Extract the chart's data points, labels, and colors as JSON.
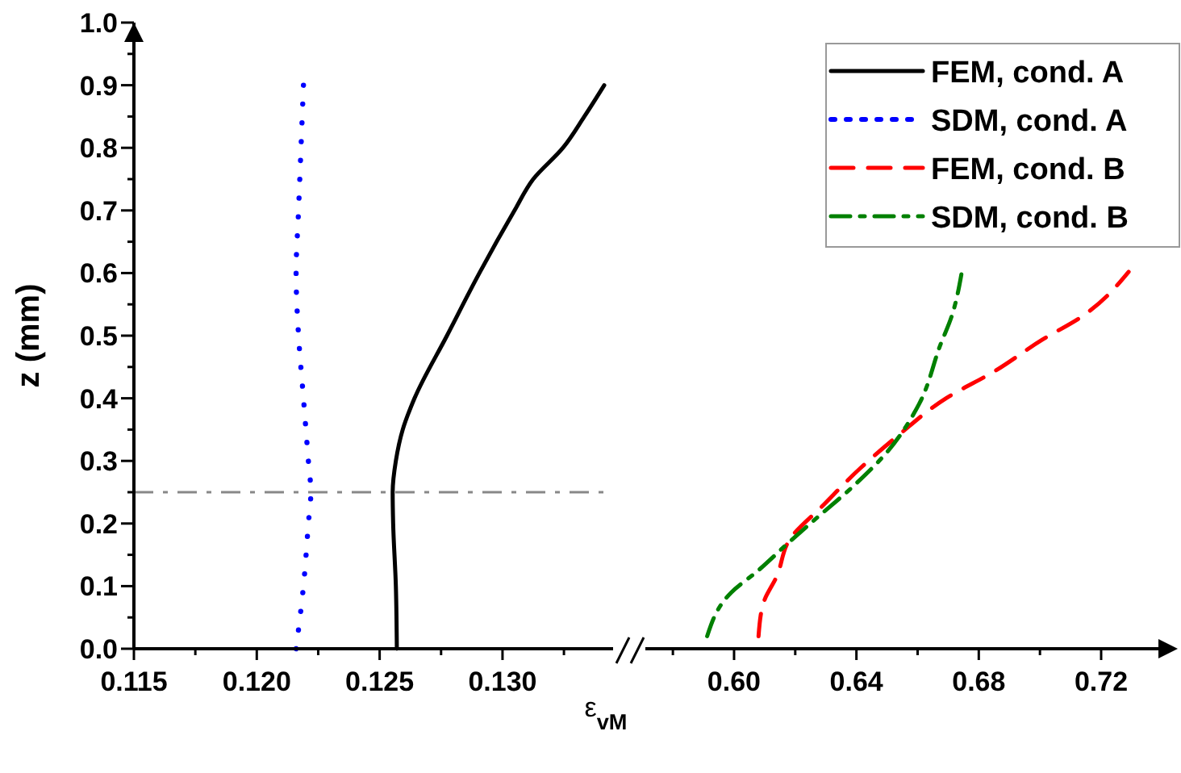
{
  "chart_data": [
    {
      "type": "line",
      "xlabel": "ε$_{vM}$",
      "ylabel": "z (mm)",
      "xlim": [
        0.115,
        0.1345
      ],
      "ylim": [
        0,
        1.0
      ],
      "xticks": [
        0.115,
        {
          "value": 0.12,
          "label": "0.120"
        },
        0.125,
        {
          "value": 0.13,
          "label": "0.130"
        },
        {
          "value": 0.1175,
          "label": null
        },
        {
          "value": 0.1225,
          "label": null
        },
        {
          "value": 0.1275,
          "label": null
        },
        {
          "value": 0.1325,
          "label": null
        }
      ],
      "yticks": [
        {
          "value": 0,
          "label": "0.0"
        },
        0.1,
        0.2,
        0.3,
        0.4,
        0.5,
        0.6,
        0.7,
        0.8,
        0.9,
        {
          "value": 1,
          "label": "1.0"
        },
        {
          "value": 0.05,
          "label": null
        },
        {
          "value": 0.15,
          "label": null
        },
        {
          "value": 0.25,
          "label": null
        },
        {
          "value": 0.35,
          "label": null
        },
        {
          "value": 0.45,
          "label": null
        },
        {
          "value": 0.55,
          "label": null
        },
        {
          "value": 0.65,
          "label": null
        },
        {
          "value": 0.75,
          "label": null
        },
        {
          "value": 0.85,
          "label": null
        },
        {
          "value": 0.95,
          "label": null
        }
      ],
      "tick_labels": "xy",
      "legend": "top right",
      "grid": false,
      "ref_lines": [
        {
          "axis": "y",
          "value": 0.25,
          "color": "#888888",
          "line_style": "dashdot"
        }
      ],
      "series": [
        {
          "name": "FEM, cond. A",
          "color": "#000000",
          "line_style": "solid",
          "x": [
            0.1257,
            0.12566,
            0.12555,
            0.12553,
            0.12566,
            0.12594,
            0.12642,
            0.12774,
            0.12906,
            0.13049,
            0.13125,
            0.13246,
            0.13333,
            0.13414
          ],
          "values": [
            0,
            0.1,
            0.2,
            0.25,
            0.3,
            0.35,
            0.4,
            0.5,
            0.6,
            0.7,
            0.75,
            0.8,
            0.85,
            0.9
          ]
        },
        {
          "name": "SDM, cond. A",
          "color": "#0000ff",
          "line_style": "dotted",
          "x": [
            0.1216,
            0.1219,
            0.1221,
            0.1222,
            0.1221,
            0.1219,
            0.1217,
            0.1216,
            0.1217,
            0.1218,
            0.1219
          ],
          "values": [
            0,
            0.1,
            0.2,
            0.25,
            0.3,
            0.4,
            0.5,
            0.6,
            0.7,
            0.8,
            0.9
          ]
        }
      ]
    },
    {
      "type": "line",
      "xlim": [
        0.571,
        0.744
      ],
      "ylim": [
        0,
        1.0
      ],
      "xticks": [
        {
          "value": 0.6,
          "label": "0.60"
        },
        0.64,
        0.68,
        0.72,
        {
          "value": 0.58,
          "label": null
        },
        {
          "value": 0.62,
          "label": null
        },
        {
          "value": 0.66,
          "label": null
        },
        {
          "value": 0.7,
          "label": null
        },
        {
          "value": 0.74,
          "label": null
        }
      ],
      "tick_labels": "x",
      "legend": "top right",
      "grid": false,
      "series": [
        {
          "name": "FEM, cond. B",
          "color": "#ff0000",
          "line_style": "dashed",
          "x": [
            0.608,
            0.6096,
            0.614,
            0.6184,
            0.6289,
            0.6412,
            0.6535,
            0.6693,
            0.6851,
            0.7009,
            0.7132,
            0.729
          ],
          "values": [
            0.02,
            0.073,
            0.116,
            0.176,
            0.228,
            0.288,
            0.34,
            0.4,
            0.443,
            0.494,
            0.529,
            0.602
          ]
        },
        {
          "name": "SDM, cond. B",
          "color": "#008000",
          "line_style": "dashdot",
          "x": [
            0.5912,
            0.5991,
            0.6079,
            0.6175,
            0.6254,
            0.6395,
            0.65,
            0.6605,
            0.6675,
            0.671,
            0.6746
          ],
          "values": [
            0.02,
            0.09,
            0.125,
            0.168,
            0.202,
            0.262,
            0.314,
            0.391,
            0.486,
            0.529,
            0.606
          ]
        }
      ]
    }
  ]
}
